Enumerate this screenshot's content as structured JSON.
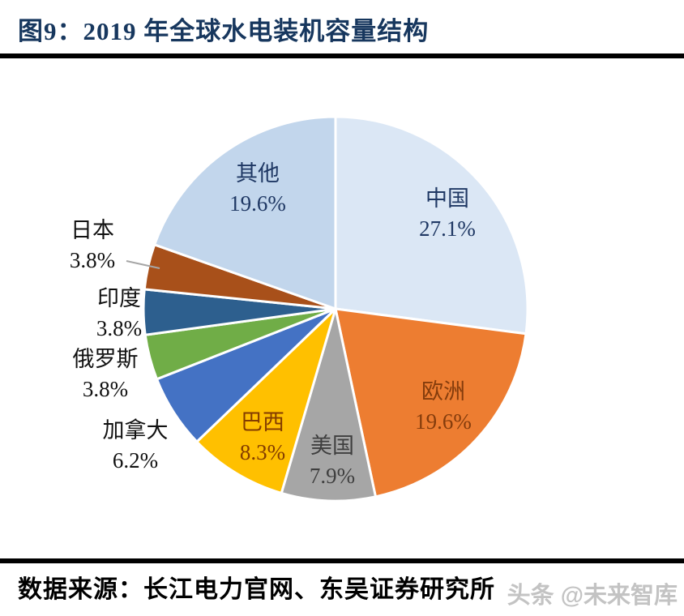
{
  "header": {
    "title": "图9：2019 年全球水电装机容量结构"
  },
  "footer": {
    "source_label": "数据来源：长江电力官网、东吴证券研究所",
    "watermark": "头条 @未来智库"
  },
  "chart_data": {
    "type": "pie",
    "title": "2019 年全球水电装机容量结构",
    "unit": "%",
    "start_angle_deg": 0,
    "direction": "clockwise",
    "legend": "none",
    "slice_border_color": "#ffffff",
    "slices": [
      {
        "id": "china",
        "label": "中国",
        "value": 27.1,
        "display": "27.1%",
        "color": "#dbe7f5",
        "label_color": "#1f3864",
        "label_position": "inside"
      },
      {
        "id": "europe",
        "label": "欧洲",
        "value": 19.6,
        "display": "19.6%",
        "color": "#ed7d31",
        "label_color": "#843c0c",
        "label_position": "inside"
      },
      {
        "id": "usa",
        "label": "美国",
        "value": 7.9,
        "display": "7.9%",
        "color": "#a6a6a6",
        "label_color": "#3f3f3f",
        "label_position": "inside"
      },
      {
        "id": "brazil",
        "label": "巴西",
        "value": 8.3,
        "display": "8.3%",
        "color": "#ffc000",
        "label_color": "#833c00",
        "label_position": "inside"
      },
      {
        "id": "canada",
        "label": "加拿大",
        "value": 6.2,
        "display": "6.2%",
        "color": "#4472c4",
        "label_color": "#111111",
        "label_position": "outside"
      },
      {
        "id": "russia",
        "label": "俄罗斯",
        "value": 3.8,
        "display": "3.8%",
        "color": "#70ad47",
        "label_color": "#111111",
        "label_position": "outside"
      },
      {
        "id": "india",
        "label": "印度",
        "value": 3.8,
        "display": "3.8%",
        "color": "#2d5f8e",
        "label_color": "#111111",
        "label_position": "outside"
      },
      {
        "id": "japan",
        "label": "日本",
        "value": 3.8,
        "display": "3.8%",
        "color": "#a8501a",
        "label_color": "#111111",
        "label_position": "outside",
        "leader_line": true
      },
      {
        "id": "other",
        "label": "其他",
        "value": 19.6,
        "display": "19.6%",
        "color": "#c2d6ec",
        "label_color": "#1f3864",
        "label_position": "inside"
      }
    ]
  }
}
